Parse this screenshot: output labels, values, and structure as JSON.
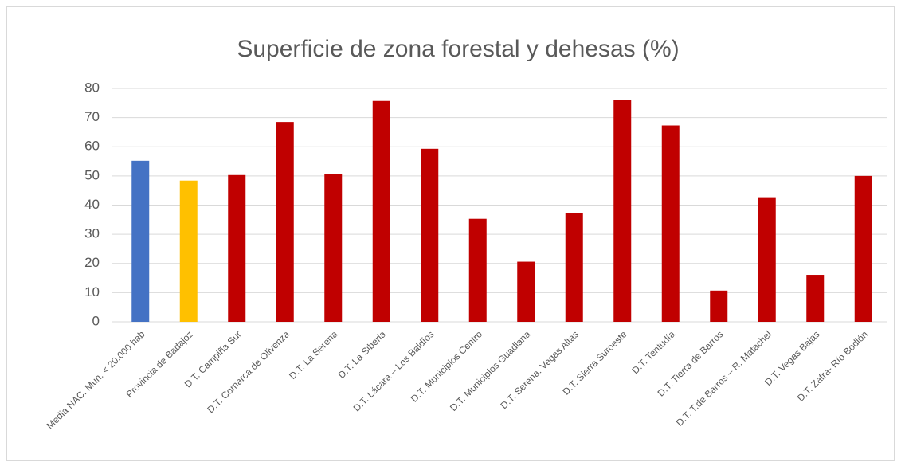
{
  "chart_data": {
    "type": "bar",
    "title": "Superficie de zona forestal y dehesas (%)",
    "categories": [
      "Media NAC. Mun. < 20.000 hab",
      "Provincia de Badajoz",
      "D.T. Campiña Sur",
      "D.T. Comarca de Olivenza",
      "D.T. La Serena",
      "D.T. La Siberia",
      "D.T. Lácara – Los Baldíos",
      "D.T. Municipios Centro",
      "D.T. Municipios Guadiana",
      "D.T. Serena. Vegas Altas",
      "D.T. Sierra Suroeste",
      "D.T. Tentudía",
      "D.T. Tierra de Barros",
      "D.T. T.de Barros – R. Matachel",
      "D.T. Vegas Bajas",
      "D.T. Zafra- Río Bodión"
    ],
    "values": [
      55.2,
      48.4,
      50.3,
      68.5,
      50.7,
      75.7,
      59.3,
      35.3,
      20.6,
      37.2,
      76.0,
      67.3,
      10.7,
      42.7,
      16.1,
      50.0
    ],
    "colors": [
      "#4472c4",
      "#ffc000",
      "#c00000",
      "#c00000",
      "#c00000",
      "#c00000",
      "#c00000",
      "#c00000",
      "#c00000",
      "#c00000",
      "#c00000",
      "#c00000",
      "#c00000",
      "#c00000",
      "#c00000",
      "#c00000"
    ],
    "ylim": [
      0,
      80
    ],
    "yticks": [
      0,
      10,
      20,
      30,
      40,
      50,
      60,
      70,
      80
    ],
    "grid": true
  }
}
